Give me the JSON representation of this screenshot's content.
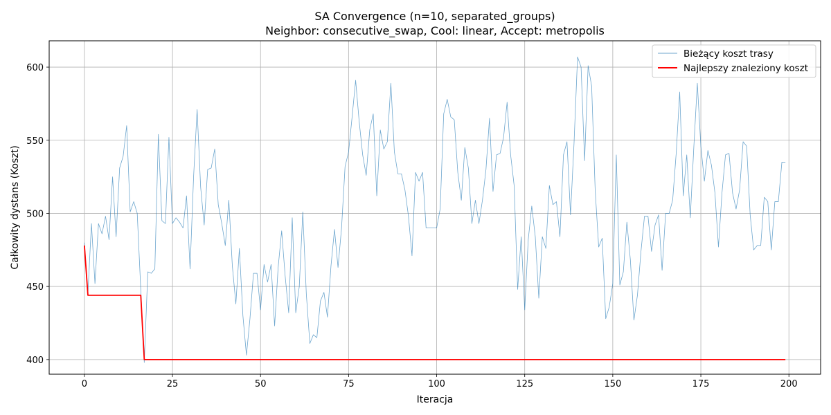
{
  "chart_data": {
    "type": "line",
    "title": "SA Convergence (n=10, separated_groups)",
    "subtitle": "Neighbor: consecutive_swap, Cool: linear, Accept: metropolis",
    "xlabel": "Iteracja",
    "ylabel": "Całkowity dystans (Koszt)",
    "xlim": [
      -10,
      209
    ],
    "ylim": [
      390,
      618
    ],
    "xticks": [
      0,
      25,
      50,
      75,
      100,
      125,
      150,
      175,
      200
    ],
    "yticks": [
      400,
      450,
      500,
      550,
      600
    ],
    "grid": true,
    "legend_position": "top-right",
    "series": [
      {
        "name": "Bieżący koszt trasy",
        "color": "#1f77b4",
        "x_start": 0,
        "x_step": 1,
        "values": [
          480,
          445,
          493,
          452,
          493,
          486,
          498,
          482,
          525,
          484,
          531,
          539,
          560,
          501,
          508,
          500,
          448,
          398,
          460,
          459,
          462,
          554,
          495,
          493,
          552,
          493,
          497,
          494,
          490,
          512,
          462,
          525,
          571,
          518,
          492,
          530,
          531,
          544,
          506,
          493,
          478,
          509,
          464,
          438,
          476,
          430,
          403,
          428,
          459,
          459,
          434,
          465,
          453,
          465,
          423,
          463,
          488,
          457,
          432,
          497,
          432,
          450,
          501,
          445,
          411,
          417,
          415,
          440,
          446,
          429,
          464,
          489,
          463,
          490,
          532,
          542,
          566,
          591,
          563,
          540,
          526,
          557,
          568,
          512,
          557,
          544,
          549,
          589,
          542,
          527,
          527,
          516,
          498,
          471,
          528,
          522,
          528,
          490,
          490,
          490,
          490,
          503,
          568,
          578,
          566,
          564,
          528,
          509,
          545,
          531,
          493,
          509,
          493,
          509,
          530,
          565,
          515,
          540,
          541,
          552,
          576,
          540,
          519,
          448,
          484,
          434,
          482,
          505,
          484,
          442,
          484,
          476,
          519,
          506,
          508,
          484,
          540,
          549,
          499,
          548,
          607,
          600,
          536,
          601,
          587,
          516,
          477,
          483,
          428,
          436,
          452,
          540,
          451,
          460,
          494,
          468,
          427,
          444,
          474,
          498,
          498,
          474,
          492,
          499,
          461,
          500,
          500,
          509,
          541,
          583,
          512,
          540,
          497,
          545,
          589,
          546,
          522,
          543,
          533,
          514,
          477,
          514,
          540,
          541,
          514,
          503,
          516,
          549,
          546,
          499,
          475,
          478,
          478,
          511,
          508,
          475,
          508,
          508,
          535,
          535
        ]
      },
      {
        "name": "Najlepszy znaleziony koszt",
        "color": "#ff0000",
        "x_start": 0,
        "x_step": 1,
        "values": [
          478,
          444,
          444,
          444,
          444,
          444,
          444,
          444,
          444,
          444,
          444,
          444,
          444,
          444,
          444,
          444,
          444,
          400,
          400,
          400,
          400,
          400,
          400,
          400,
          400,
          400,
          400,
          400,
          400,
          400,
          400,
          400,
          400,
          400,
          400,
          400,
          400,
          400,
          400,
          400,
          400,
          400,
          400,
          400,
          400,
          400,
          400,
          400,
          400,
          400,
          400,
          400,
          400,
          400,
          400,
          400,
          400,
          400,
          400,
          400,
          400,
          400,
          400,
          400,
          400,
          400,
          400,
          400,
          400,
          400,
          400,
          400,
          400,
          400,
          400,
          400,
          400,
          400,
          400,
          400,
          400,
          400,
          400,
          400,
          400,
          400,
          400,
          400,
          400,
          400,
          400,
          400,
          400,
          400,
          400,
          400,
          400,
          400,
          400,
          400,
          400,
          400,
          400,
          400,
          400,
          400,
          400,
          400,
          400,
          400,
          400,
          400,
          400,
          400,
          400,
          400,
          400,
          400,
          400,
          400,
          400,
          400,
          400,
          400,
          400,
          400,
          400,
          400,
          400,
          400,
          400,
          400,
          400,
          400,
          400,
          400,
          400,
          400,
          400,
          400,
          400,
          400,
          400,
          400,
          400,
          400,
          400,
          400,
          400,
          400,
          400,
          400,
          400,
          400,
          400,
          400,
          400,
          400,
          400,
          400,
          400,
          400,
          400,
          400,
          400,
          400,
          400,
          400,
          400,
          400,
          400,
          400,
          400,
          400,
          400,
          400,
          400,
          400,
          400,
          400,
          400,
          400,
          400,
          400,
          400,
          400,
          400,
          400,
          400,
          400,
          400,
          400,
          400,
          400,
          400,
          400,
          400,
          400,
          400,
          400
        ]
      }
    ]
  }
}
